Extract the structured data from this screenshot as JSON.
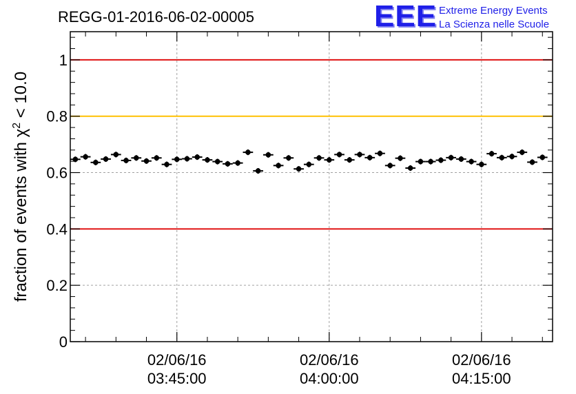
{
  "title": "REGG-01-2016-06-02-00005",
  "logo": {
    "text": "EEE",
    "line1": "Extreme Energy Events",
    "line2": "La Scienza nelle Scuole",
    "color": "#1f1fe8"
  },
  "chart_data": {
    "type": "scatter",
    "title": "REGG-01-2016-06-02-00005",
    "ylabel": "fraction of events with χ² < 10.0",
    "ylabel_parts": {
      "pre": "fraction of events with ",
      "chi": "χ",
      "sup": "2",
      "post": " < 10.0"
    },
    "xlabel": "",
    "ylim": [
      0,
      1.1
    ],
    "xlim": [
      "2016-06-02 03:34:30",
      "2016-06-02 04:22:00"
    ],
    "x_ticks": [
      {
        "value": "2016-06-02 03:45:00",
        "date": "02/06/16",
        "time": "03:45:00"
      },
      {
        "value": "2016-06-02 04:00:00",
        "date": "02/06/16",
        "time": "04:00:00"
      },
      {
        "value": "2016-06-02 04:15:00",
        "date": "02/06/16",
        "time": "04:15:00"
      }
    ],
    "y_ticks": [
      {
        "value": 0,
        "label": "0"
      },
      {
        "value": 0.2,
        "label": "0.2"
      },
      {
        "value": 0.4,
        "label": "0.4"
      },
      {
        "value": 0.6,
        "label": "0.6"
      },
      {
        "value": 0.8,
        "label": "0.8"
      },
      {
        "value": 1.0,
        "label": "1"
      }
    ],
    "grid": true,
    "reference_lines": [
      {
        "y": 1.0,
        "color": "#e01010"
      },
      {
        "y": 0.8,
        "color": "#ffc000"
      },
      {
        "y": 0.4,
        "color": "#e01010"
      }
    ],
    "marker_color": "#000000",
    "series": [
      {
        "x": [
          "03:35:00",
          "03:36:00",
          "03:37:00",
          "03:38:00",
          "03:39:00",
          "03:40:00",
          "03:41:00",
          "03:42:00",
          "03:43:00",
          "03:44:00",
          "03:45:00",
          "03:46:00",
          "03:47:00",
          "03:48:00",
          "03:49:00",
          "03:50:00",
          "03:51:00",
          "03:52:00",
          "03:53:00",
          "03:54:00",
          "03:55:00",
          "03:56:00",
          "03:57:00",
          "03:58:00",
          "03:59:00",
          "04:00:00",
          "04:01:00",
          "04:02:00",
          "04:03:00",
          "04:04:00",
          "04:05:00",
          "04:06:00",
          "04:07:00",
          "04:08:00",
          "04:09:00",
          "04:10:00",
          "04:11:00",
          "04:12:00",
          "04:13:00",
          "04:14:00",
          "04:15:00",
          "04:16:00",
          "04:17:00",
          "04:18:00",
          "04:19:00",
          "04:20:00",
          "04:21:00"
        ],
        "values": [
          0.647,
          0.656,
          0.636,
          0.648,
          0.664,
          0.643,
          0.652,
          0.641,
          0.652,
          0.629,
          0.647,
          0.649,
          0.655,
          0.645,
          0.639,
          0.631,
          0.634,
          0.672,
          0.606,
          0.663,
          0.625,
          0.652,
          0.613,
          0.629,
          0.652,
          0.645,
          0.664,
          0.645,
          0.664,
          0.653,
          0.668,
          0.625,
          0.651,
          0.616,
          0.639,
          0.639,
          0.644,
          0.653,
          0.648,
          0.639,
          0.629,
          0.667,
          0.653,
          0.657,
          0.672,
          0.637,
          0.654
        ],
        "x_error_min": 0.5,
        "y_error": 0.01
      }
    ]
  }
}
